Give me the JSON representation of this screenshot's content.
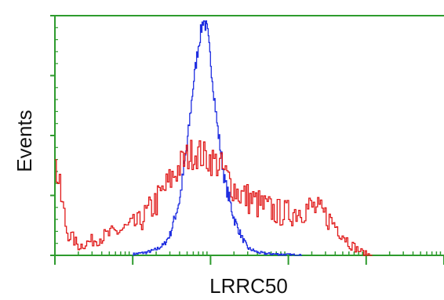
{
  "chart_data": {
    "type": "line",
    "title": "",
    "xlabel": "LRRC50",
    "ylabel": "Events",
    "x_scale": "log",
    "xlim": [
      1,
      100000
    ],
    "ylim": [
      0,
      4
    ],
    "grid": false,
    "legend": "none",
    "axis_color": "#2e9b2e",
    "series": [
      {
        "color": "#1f2ee0",
        "x": [
          10,
          15,
          20,
          25,
          30,
          40,
          50,
          60,
          70,
          80,
          90,
          100,
          120,
          150,
          200,
          250,
          300,
          400,
          500,
          700,
          1000,
          1500
        ],
        "y": [
          0.02,
          0.05,
          0.1,
          0.18,
          0.35,
          0.95,
          1.9,
          2.9,
          3.55,
          3.95,
          3.75,
          3.2,
          2.2,
          1.25,
          0.6,
          0.3,
          0.12,
          0.05,
          0.03,
          0.02,
          0.01,
          0.0
        ]
      },
      {
        "color": "#e01818",
        "x": [
          1,
          1.4,
          2,
          3,
          5,
          8,
          12,
          20,
          30,
          40,
          50,
          60,
          70,
          80,
          100,
          130,
          170,
          220,
          300,
          450,
          700,
          1000,
          1500,
          2000,
          3000,
          4000,
          5000,
          6000,
          8000,
          10000,
          12000
        ],
        "y": [
          1.5,
          0.4,
          0.15,
          0.25,
          0.35,
          0.45,
          0.55,
          0.9,
          1.25,
          1.5,
          1.65,
          1.72,
          1.7,
          1.65,
          1.6,
          1.5,
          1.25,
          1.05,
          0.95,
          0.82,
          0.72,
          0.7,
          0.78,
          0.8,
          0.65,
          0.5,
          0.35,
          0.2,
          0.08,
          0.02,
          0.0
        ]
      }
    ]
  }
}
